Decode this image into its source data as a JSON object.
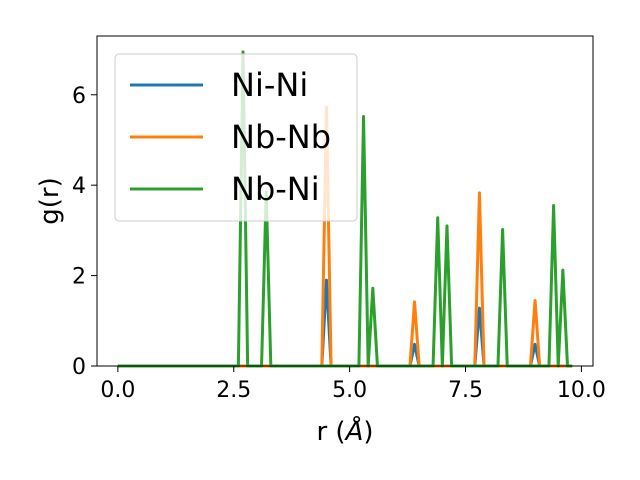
{
  "chart_data": {
    "type": "line",
    "title": "",
    "xlabel_prefix": "r (",
    "xlabel_unit": "Å",
    "xlabel_suffix": ")",
    "ylabel": "g(r)",
    "xlim": [
      -0.45,
      10.25
    ],
    "ylim": [
      0,
      7.3
    ],
    "xticks": [
      0.0,
      2.5,
      5.0,
      7.5,
      10.0
    ],
    "xtick_labels": [
      "0.0",
      "2.5",
      "5.0",
      "7.5",
      "10.0"
    ],
    "yticks": [
      0,
      2,
      4,
      6
    ],
    "ytick_labels": [
      "0",
      "2",
      "4",
      "6"
    ],
    "grid": false,
    "legend_position": "top-left",
    "series": [
      {
        "name": "Ni-Ni",
        "color": "#1f77b4",
        "x": [
          0,
          4.4,
          4.5,
          4.6,
          6.3,
          6.4,
          6.5,
          7.7,
          7.8,
          7.9,
          8.9,
          9.0,
          9.1,
          9.8
        ],
        "y": [
          0,
          0,
          1.9,
          0,
          0,
          0.48,
          0,
          0,
          1.28,
          0,
          0,
          0.48,
          0,
          0
        ]
      },
      {
        "name": "Nb-Nb",
        "color": "#ff7f0e",
        "x": [
          0,
          4.4,
          4.5,
          4.6,
          6.3,
          6.4,
          6.5,
          7.7,
          7.8,
          7.9,
          8.9,
          9.0,
          9.1,
          9.8
        ],
        "y": [
          0,
          0,
          5.72,
          0,
          0,
          1.42,
          0,
          0,
          3.83,
          0,
          0,
          1.45,
          0,
          0
        ]
      },
      {
        "name": "Nb-Ni",
        "color": "#2ca02c",
        "x": [
          0,
          2.6,
          2.7,
          2.8,
          3.1,
          3.2,
          3.3,
          5.2,
          5.3,
          5.4,
          5.5,
          5.6,
          6.8,
          6.9,
          7.0,
          7.1,
          7.2,
          8.2,
          8.3,
          8.4,
          9.3,
          9.4,
          9.5,
          9.6,
          9.7,
          9.8
        ],
        "y": [
          0,
          0,
          6.95,
          0,
          0,
          3.85,
          0,
          0,
          5.52,
          0,
          1.72,
          0,
          0,
          3.28,
          0,
          3.1,
          0,
          0,
          3.02,
          0,
          0,
          3.55,
          0,
          2.12,
          0,
          0
        ]
      }
    ]
  }
}
